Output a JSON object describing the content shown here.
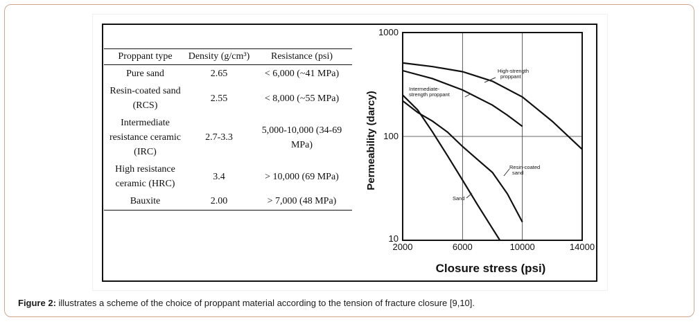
{
  "table": {
    "headers": [
      "Proppant type",
      "Density (g/cm³)",
      "Resistance (psi)"
    ],
    "rows": [
      {
        "type": "Pure sand",
        "density": "2.65",
        "resistance": "< 6,000 (~41 MPa)"
      },
      {
        "type": "Resin-coated sand (RCS)",
        "density": "2.55",
        "resistance": "< 8,000 (~55 MPa)"
      },
      {
        "type": "Intermediate resistance ceramic (IRC)",
        "density": "2.7-3.3",
        "resistance": "5,000-10,000 (34-69 MPa)"
      },
      {
        "type": "High resistance ceramic (HRC)",
        "density": "3.4",
        "resistance": "> 10,000 (69 MPa)"
      },
      {
        "type": "Bauxite",
        "density": "2.00",
        "resistance": "> 7,000 (48 MPa)"
      }
    ]
  },
  "chart_data": {
    "type": "line",
    "title": "",
    "xlabel": "Closure stress (psi)",
    "ylabel": "Permeability (darcy)",
    "xlim": [
      2000,
      14000
    ],
    "ylim": [
      10,
      1000
    ],
    "yscale": "log",
    "xticks": [
      2000,
      6000,
      10000,
      14000
    ],
    "xtick_labels": [
      "2000",
      "6000",
      "10000",
      "14000"
    ],
    "yticks": [
      10,
      100,
      1000
    ],
    "ytick_labels": [
      "10",
      "100",
      "1000"
    ],
    "grid": true,
    "series": [
      {
        "name": "High-strength proppant",
        "x": [
          2000,
          4000,
          6000,
          8000,
          10000,
          12000,
          14000
        ],
        "y": [
          510,
          470,
          420,
          340,
          240,
          140,
          75
        ]
      },
      {
        "name": "Intermediate-strength proppant",
        "x": [
          2000,
          4000,
          6000,
          8000,
          9000,
          10000
        ],
        "y": [
          430,
          360,
          280,
          200,
          160,
          125
        ]
      },
      {
        "name": "Resin-coated sand",
        "x": [
          2000,
          3000,
          4000,
          5000,
          6000,
          7000,
          8000,
          9000,
          10000
        ],
        "y": [
          220,
          170,
          140,
          110,
          80,
          60,
          45,
          28,
          15
        ]
      },
      {
        "name": "Sand",
        "x": [
          2000,
          3000,
          4000,
          5000,
          6000,
          7000,
          8000,
          8500
        ],
        "y": [
          250,
          180,
          110,
          65,
          38,
          22,
          13,
          10
        ]
      }
    ],
    "annotations": [
      "High-strength proppant",
      "Intermediate-strength proppant",
      "Resin-coated sand",
      "Sand"
    ]
  },
  "caption": {
    "label": "Figure 2:",
    "text": " illustrates a scheme of the choice of proppant material according to the tension of fracture closure [9,10]."
  }
}
